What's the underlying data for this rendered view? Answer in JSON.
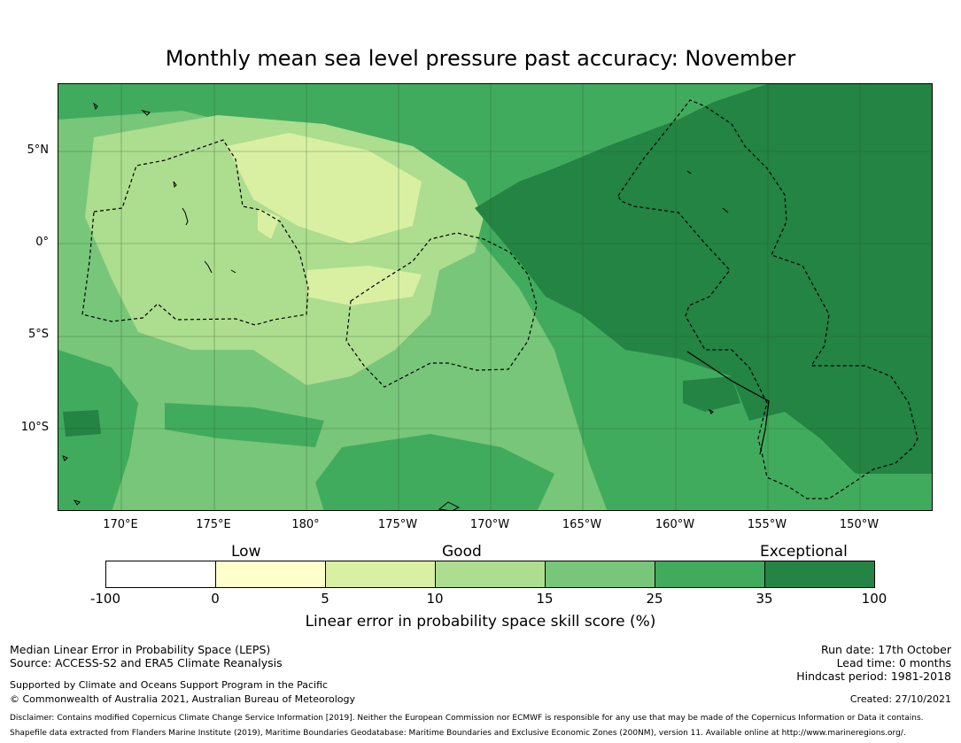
{
  "title": "Monthly mean sea level pressure past accuracy: November",
  "map": {
    "lat_labels": [
      "5°N",
      "0°",
      "5°S",
      "10°S"
    ],
    "lon_labels": [
      "170°E",
      "175°E",
      "180°",
      "175°W",
      "170°W",
      "165°W",
      "160°W",
      "155°W",
      "150°W"
    ]
  },
  "colorbar": {
    "category_labels": [
      "Low",
      "Good",
      "Exceptional"
    ],
    "ticks": [
      "-100",
      "0",
      "5",
      "10",
      "15",
      "25",
      "35",
      "100"
    ],
    "colors": [
      "#ffffff",
      "#ffffcc",
      "#d9f0a3",
      "#addd8e",
      "#78c679",
      "#41ab5d",
      "#238443"
    ],
    "label": "Linear error in probability space skill score (%)"
  },
  "footer": {
    "method": "Median Linear Error in Probability Space (LEPS)",
    "source": "Source: ACCESS-S2 and ERA5 Climate Reanalysis",
    "support": "Supported by Climate and Oceans Support Program in the Pacific",
    "copyright": "© Commonwealth of Australia 2021, Australian Bureau of Meteorology",
    "run_date": "Run date: 17th October",
    "lead_time": "Lead time: 0 months",
    "hindcast": "Hindcast period: 1981-2018",
    "created": "Created: 27/10/2021",
    "disclaimer": "Disclaimer: Contains modified Copernicus Climate Change Service Information [2019]. Neither the European Commission nor ECMWF is responsible for any use that may be made of the Copernicus Information or Data it contains.",
    "shapefile": "Shapefile data extracted from Flanders Marine Institute (2019), Maritime Boundaries Geodatabase: Maritime Boundaries and Exclusive Economic Zones (200NM), version 11. Available online at http://www.marineregions.org/."
  }
}
